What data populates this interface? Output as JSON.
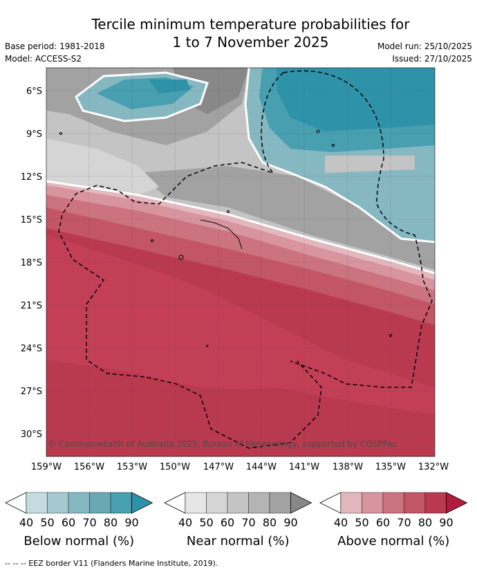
{
  "title": {
    "line1": "Tercile minimum temperature probabilities for",
    "line2": "1 to 7 November 2025"
  },
  "meta_left": {
    "base_period": "Base period: 1981-2018",
    "model": "Model: ACCESS-S2"
  },
  "meta_right": {
    "model_run": "Model run: 25/10/2025",
    "issued": "Issued: 27/10/2025"
  },
  "map": {
    "lat_labels": [
      "6°S",
      "9°S",
      "12°S",
      "15°S",
      "18°S",
      "21°S",
      "24°S",
      "27°S",
      "30°S"
    ],
    "lon_labels": [
      "159°W",
      "156°W",
      "153°W",
      "150°W",
      "147°W",
      "144°W",
      "141°W",
      "138°W",
      "135°W",
      "132°W"
    ],
    "copyright": "© Commonwealth of Australia 2025, Bureau of Meteorology, supported by COSPPac"
  },
  "legends": [
    {
      "title": "Below normal (%)",
      "ticks": [
        "40",
        "50",
        "60",
        "70",
        "80",
        "90"
      ],
      "colors": [
        "#c4dbe1",
        "#a4c9d0",
        "#86b8c2",
        "#69a8b5",
        "#479fb0",
        "#2e93a8"
      ]
    },
    {
      "title": "Near normal (%)",
      "ticks": [
        "40",
        "50",
        "60",
        "70",
        "80",
        "90"
      ],
      "colors": [
        "#e6e6e6",
        "#d5d5d5",
        "#c4c4c4",
        "#b4b4b4",
        "#a2a2a2",
        "#888888"
      ]
    },
    {
      "title": "Above normal (%)",
      "ticks": [
        "40",
        "50",
        "60",
        "70",
        "80",
        "90"
      ],
      "colors": [
        "#e3b7be",
        "#d8959f",
        "#cc7380",
        "#c25666",
        "#b93a4f",
        "#b01c3c"
      ]
    }
  ],
  "footer": "--  --  -- EEZ border V11 (Flanders Marine Institute, 2019)."
}
